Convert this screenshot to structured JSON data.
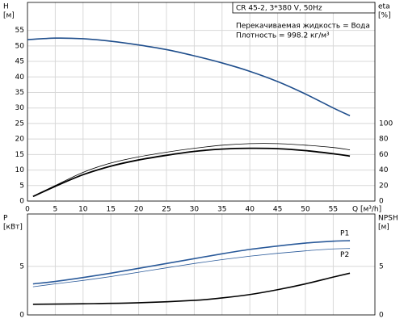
{
  "chart_data": [
    {
      "type": "line",
      "annotations": [
        "CR 45-2, 3*380 V, 50Hz",
        "Перекачиваемая жидкость = Вода",
        "Плотность = 998.2 кг/м³"
      ],
      "ylabel": [
        "H",
        "[м]"
      ],
      "y2label": [
        "eta",
        "[%]"
      ],
      "xlabel": "Q [м³/h]",
      "xlim": [
        0,
        62.5
      ],
      "xticks": [
        0,
        5,
        10,
        15,
        20,
        25,
        30,
        35,
        40,
        45,
        50,
        55
      ],
      "ylim": [
        0,
        64
      ],
      "yticks": [
        0,
        5,
        10,
        15,
        20,
        25,
        30,
        35,
        40,
        45,
        50,
        55
      ],
      "y2lim": [
        0,
        256
      ],
      "y2ticks": [
        0,
        20,
        40,
        60,
        80,
        100
      ],
      "grid": true,
      "series": [
        {
          "color": "#1f4e8c",
          "width": 1.6,
          "x": [
            0,
            5,
            10,
            15,
            20,
            25,
            30,
            35,
            40,
            45,
            50,
            55,
            58
          ],
          "values": [
            52,
            52.5,
            52.3,
            51.5,
            50.3,
            48.8,
            46.8,
            44.5,
            41.8,
            38.5,
            34.5,
            30,
            27.5
          ]
        },
        {
          "color": "#000000",
          "width": 0.8,
          "axis": "y2",
          "x": [
            1,
            5,
            10,
            15,
            20,
            25,
            30,
            35,
            40,
            45,
            50,
            55,
            58
          ],
          "values": [
            6,
            20,
            37,
            49,
            57,
            63,
            68,
            72,
            74,
            74,
            72,
            69,
            66
          ]
        },
        {
          "color": "#000000",
          "width": 1.8,
          "axis": "y2",
          "x": [
            1,
            5,
            10,
            15,
            20,
            25,
            30,
            35,
            40,
            45,
            50,
            55,
            58
          ],
          "values": [
            6,
            19,
            34,
            45,
            53,
            59,
            64,
            67,
            68,
            67.5,
            65,
            61,
            58
          ]
        }
      ]
    },
    {
      "type": "line",
      "ylabel": [
        "P",
        "[кВт]"
      ],
      "y2label": [
        "NPSH",
        "[м]"
      ],
      "xlim": [
        0,
        62.5
      ],
      "xticks": [
        0,
        5,
        10,
        15,
        20,
        25,
        30,
        35,
        40,
        45,
        50,
        55
      ],
      "ylim": [
        0,
        10.4
      ],
      "yticks": [
        0,
        5
      ],
      "y2lim": [
        0,
        10.4
      ],
      "y2ticks": [
        0,
        5
      ],
      "grid": true,
      "series": [
        {
          "name": "P1",
          "color": "#2a5a9a",
          "width": 1.6,
          "x": [
            1,
            5,
            10,
            15,
            20,
            25,
            30,
            35,
            40,
            45,
            50,
            55,
            58
          ],
          "values": [
            3.2,
            3.45,
            3.85,
            4.3,
            4.8,
            5.3,
            5.8,
            6.3,
            6.75,
            7.1,
            7.4,
            7.6,
            7.65
          ]
        },
        {
          "name": "P2",
          "color": "#2a5a9a",
          "width": 0.8,
          "x": [
            1,
            5,
            10,
            15,
            20,
            25,
            30,
            35,
            40,
            45,
            50,
            55,
            58
          ],
          "values": [
            2.9,
            3.2,
            3.55,
            3.95,
            4.4,
            4.85,
            5.3,
            5.7,
            6.05,
            6.35,
            6.6,
            6.8,
            6.85
          ]
        },
        {
          "color": "#000000",
          "width": 1.6,
          "axis": "y2",
          "x": [
            1,
            10,
            20,
            30,
            35,
            40,
            45,
            50,
            55,
            58
          ],
          "values": [
            1.1,
            1.15,
            1.25,
            1.5,
            1.75,
            2.1,
            2.6,
            3.2,
            3.9,
            4.3
          ]
        }
      ]
    }
  ]
}
